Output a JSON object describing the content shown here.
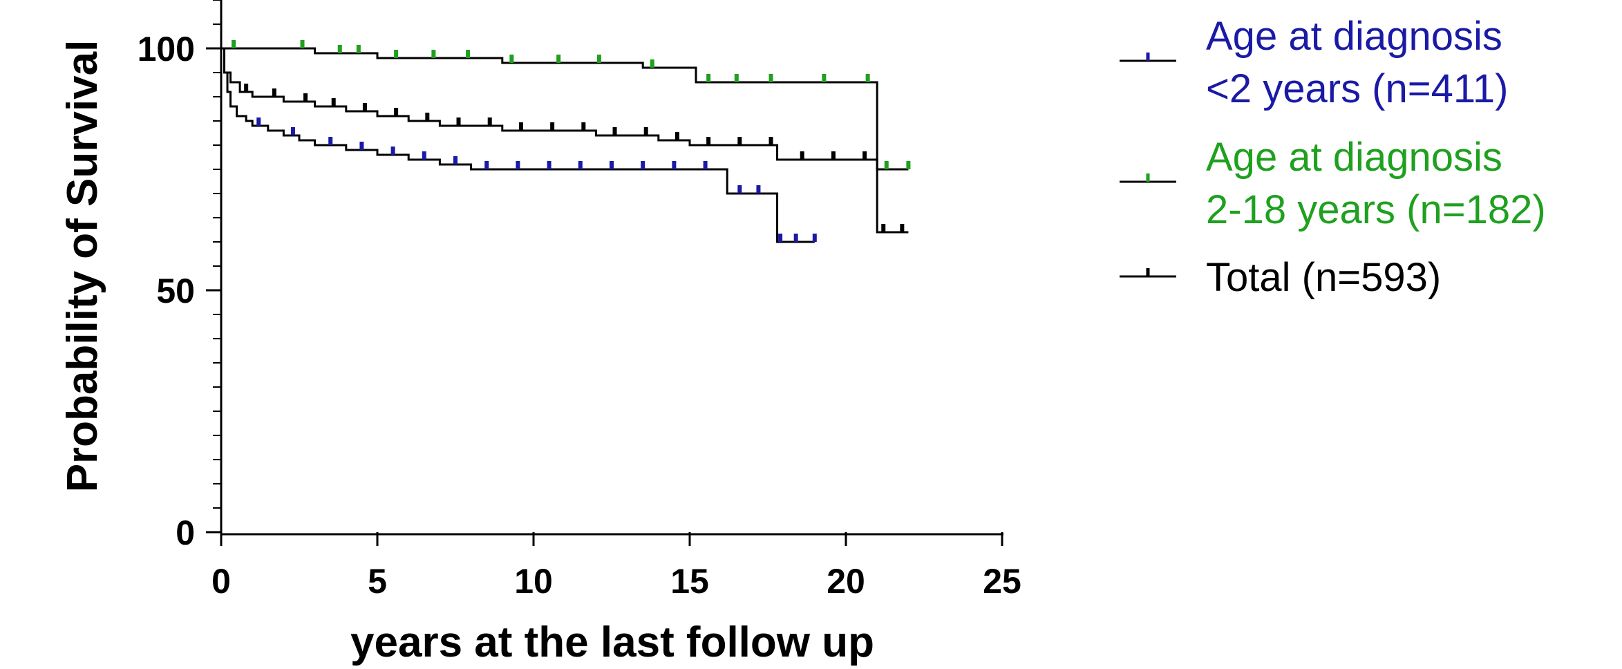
{
  "chart_data": {
    "type": "line",
    "subtype": "kaplan-meier",
    "title": "",
    "xlabel": "years at the last follow up",
    "ylabel": "Probability of Survival",
    "xlim": [
      0,
      25
    ],
    "ylim": [
      0,
      100
    ],
    "xticks": [
      "0",
      "5",
      "10",
      "15",
      "20",
      "25"
    ],
    "yticks": [
      "0",
      "50",
      "100"
    ],
    "grid": false,
    "legend_position": "right",
    "series": [
      {
        "name_line1": "Age at diagnosis",
        "name_line2": "<2 years (n=411)",
        "color": "#1a1aa6",
        "x": [
          0,
          0.1,
          0.2,
          0.3,
          0.5,
          0.8,
          1.0,
          1.5,
          2.0,
          2.5,
          3.0,
          4.0,
          5.0,
          6.0,
          7.0,
          8.0,
          16.0,
          16.2,
          17.8,
          19.0
        ],
        "y": [
          100,
          95,
          91,
          88,
          86,
          85,
          84,
          83,
          82,
          81,
          80,
          79,
          78,
          77,
          76,
          75,
          75,
          70,
          60,
          60
        ],
        "censor_x": [
          1.2,
          2.3,
          3.5,
          4.5,
          5.5,
          6.5,
          7.5,
          8.5,
          9.5,
          10.5,
          11.5,
          12.5,
          13.5,
          14.5,
          15.5,
          16.6,
          17.2,
          17.9,
          18.4,
          19.0
        ]
      },
      {
        "name_line1": "Age at diagnosis",
        "name_line2": "2-18 years (n=182)",
        "color": "#1fa01f",
        "x": [
          0,
          3.0,
          5.0,
          9.0,
          13.5,
          15.2,
          21.0,
          22.0
        ],
        "y": [
          100,
          99,
          98,
          97,
          96,
          93,
          75,
          75
        ],
        "censor_x": [
          0.4,
          2.6,
          3.8,
          4.4,
          5.6,
          6.8,
          7.9,
          9.3,
          10.8,
          12.1,
          13.8,
          15.6,
          16.5,
          17.6,
          19.3,
          20.7,
          21.3,
          22.0
        ]
      },
      {
        "name_line1": "Total (n=593)",
        "color": "#000000",
        "x": [
          0,
          0.1,
          0.3,
          0.6,
          1.0,
          2.0,
          3.0,
          4.0,
          5.0,
          6.0,
          7.0,
          9.0,
          12.0,
          14.0,
          15.0,
          17.8,
          21.0,
          22.0
        ],
        "y": [
          100,
          95,
          93,
          91,
          90,
          89,
          88,
          87,
          86,
          85,
          84,
          83,
          82,
          81,
          80,
          77,
          62,
          62
        ],
        "censor_x": [
          0.8,
          1.7,
          2.7,
          3.6,
          4.6,
          5.6,
          6.6,
          7.6,
          8.6,
          9.6,
          10.6,
          11.6,
          12.6,
          13.6,
          14.6,
          15.6,
          16.6,
          17.6,
          18.6,
          19.6,
          20.6,
          21.2,
          21.8
        ]
      }
    ]
  }
}
